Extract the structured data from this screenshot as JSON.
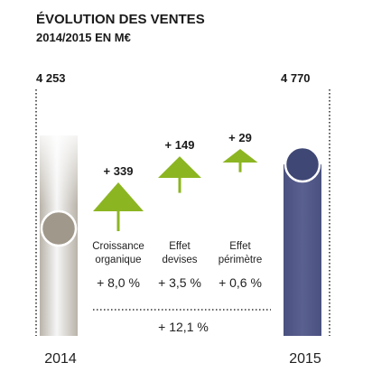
{
  "chart_data": {
    "type": "bar",
    "title": "ÉVOLUTION DES VENTES",
    "subtitle": "2014/2015 EN M€",
    "start": {
      "label": "2014",
      "value": 4253,
      "display": "4 253"
    },
    "end": {
      "label": "2015",
      "value": 4770,
      "display": "4 770"
    },
    "steps": [
      {
        "label_line1": "Croissance",
        "label_line2": "organique",
        "delta": 339,
        "delta_display": "+ 339",
        "pct_display": "+ 8,0 %"
      },
      {
        "label_line1": "Effet",
        "label_line2": "devises",
        "delta": 149,
        "delta_display": "+ 149",
        "pct_display": "+ 3,5 %"
      },
      {
        "label_line1": "Effet",
        "label_line2": "périmètre",
        "delta": 29,
        "delta_display": "+ 29",
        "pct_display": "+ 0,6 %"
      }
    ],
    "total_pct_display": "+ 12,1 %",
    "colors": {
      "title": "#1a1a1a",
      "bar_2014_dark": "#a0988a",
      "bar_2014_light": "#f4f4f4",
      "circle_2014": "#a0988a",
      "bar_2015": "#4d5482",
      "circle_2015": "#3f4775",
      "arrow": "#8cb522",
      "dots": "#333333",
      "text": "#222222"
    }
  }
}
